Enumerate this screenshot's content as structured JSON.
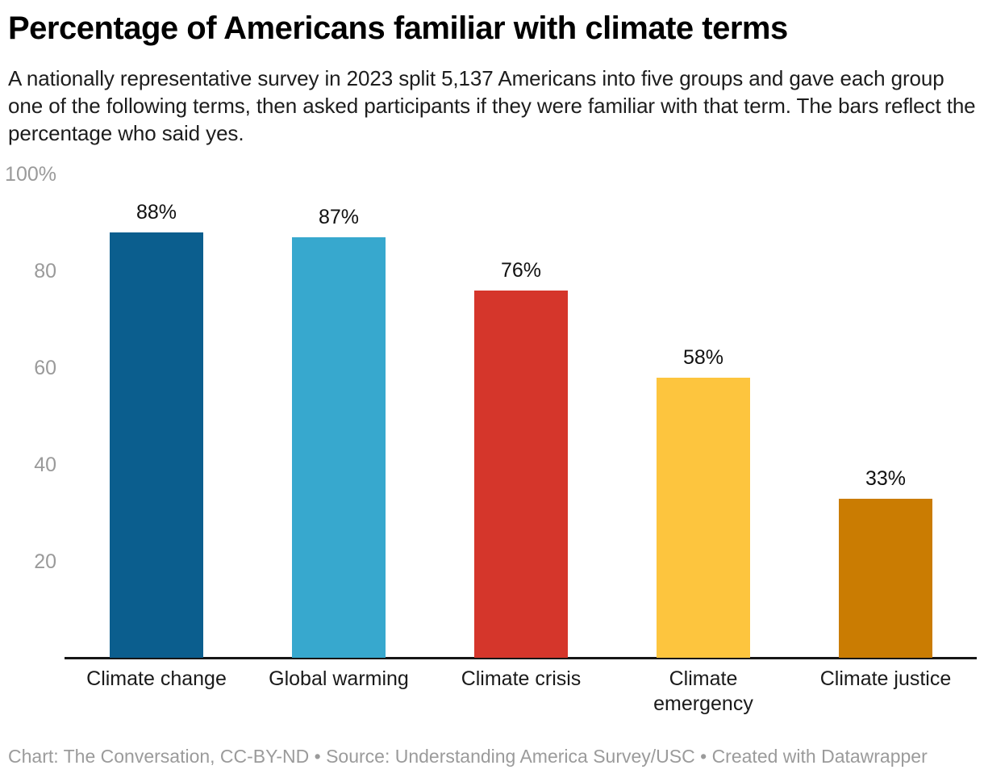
{
  "header": {
    "title": "Percentage of Americans familiar with climate terms",
    "description": "A nationally representative survey in 2023 split 5,137 Americans into five groups and gave each group one of the following terms, then asked participants if they were familiar with that term. The bars reflect the percentage who said yes."
  },
  "footer": {
    "attribution": "Chart: The Conversation, CC-BY-ND • Source: Understanding America Survey/USC • Created with Datawrapper"
  },
  "chart_data": {
    "type": "bar",
    "title": "Percentage of Americans familiar with climate terms",
    "categories": [
      "Climate change",
      "Global warming",
      "Climate crisis",
      "Climate\nemergency",
      "Climate justice"
    ],
    "values": [
      88,
      87,
      76,
      58,
      33
    ],
    "value_labels": [
      "88%",
      "87%",
      "76%",
      "58%",
      "33%"
    ],
    "bar_colors": [
      "#0b5e8e",
      "#37a8ce",
      "#d5362b",
      "#fdc53e",
      "#ca7c02"
    ],
    "yticks": [
      {
        "value": 100,
        "label": "100%"
      },
      {
        "value": 80,
        "label": "80"
      },
      {
        "value": 60,
        "label": "60"
      },
      {
        "value": 40,
        "label": "40"
      },
      {
        "value": 20,
        "label": "20"
      }
    ],
    "ylim": [
      0,
      100
    ],
    "xlabel": "",
    "ylabel": "",
    "grid": "off",
    "legend": "none",
    "axis_color": "#161616",
    "tick_label_color": "#9a9a9a",
    "value_label_color": "#111111"
  }
}
